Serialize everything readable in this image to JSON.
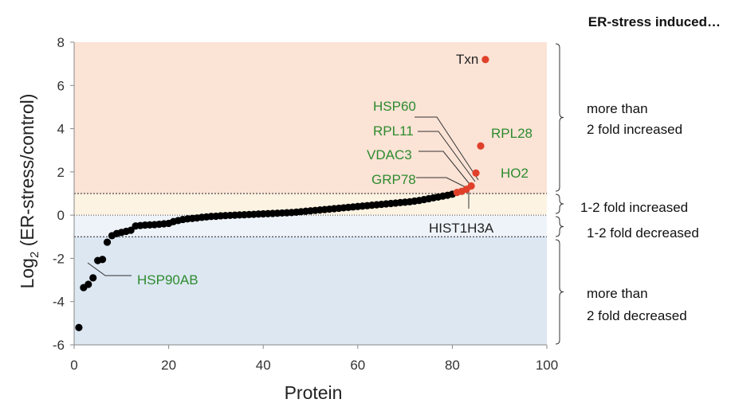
{
  "chart_data": {
    "type": "scatter",
    "title": "",
    "header": "ER-stress induced…",
    "xlabel": "Protein",
    "ylabel_main": "Log",
    "ylabel_sub": "2",
    "ylabel_rest": " (ER-stress/control)",
    "xlim": [
      0,
      100
    ],
    "ylim": [
      -6,
      8
    ],
    "x_ticks": [
      "0",
      "20",
      "40",
      "60",
      "80",
      "100"
    ],
    "y_ticks": [
      "8",
      "6",
      "4",
      "2",
      "0",
      "-2",
      "-4",
      "-6"
    ],
    "colors": {
      "band_increased_2x": "#fbe3d6",
      "band_increased_1_2x": "#fdf3e3",
      "band_decreased_1_2x": "#eef3f9",
      "band_decreased_2x": "#dce7f2",
      "point_default": "#000000",
      "point_highlight": "#e0402a",
      "label_green": "#2e8b2e"
    },
    "bands": [
      {
        "from": 1.0,
        "to": 8.0,
        "label": "more than 2 fold increased"
      },
      {
        "from": 0.0,
        "to": 1.0,
        "label": "1-2 fold increased"
      },
      {
        "from": -1.0,
        "to": 0.0,
        "label": "1-2 fold decreased"
      },
      {
        "from": -6.0,
        "to": -1.0,
        "label": "more than 2 fold decreased"
      }
    ],
    "band_label_lines": {
      "inc2": [
        "more than",
        "2 fold increased"
      ],
      "inc12": "1-2 fold increased",
      "dec12": "1-2 fold decreased",
      "dec2": [
        "more than",
        "2 fold decreased"
      ]
    },
    "series": [
      {
        "color": "#000000",
        "x": [
          1,
          2,
          3,
          4,
          5,
          6,
          7,
          8,
          9,
          10,
          11,
          12,
          13,
          14,
          15,
          16,
          17,
          18,
          19,
          20,
          21,
          22,
          23,
          24,
          25,
          26,
          27,
          28,
          29,
          30,
          31,
          32,
          33,
          34,
          35,
          36,
          37,
          38,
          39,
          40,
          41,
          42,
          43,
          44,
          45,
          46,
          47,
          48,
          49,
          50,
          51,
          52,
          53,
          54,
          55,
          56,
          57,
          58,
          59,
          60,
          61,
          62,
          63,
          64,
          65,
          66,
          67,
          68,
          69,
          70,
          71,
          72,
          73,
          74,
          75,
          76,
          77,
          78,
          79,
          80
        ],
        "y": [
          -5.2,
          -3.35,
          -3.2,
          -2.9,
          -2.1,
          -2.05,
          -1.25,
          -0.95,
          -0.85,
          -0.8,
          -0.75,
          -0.7,
          -0.5,
          -0.48,
          -0.46,
          -0.45,
          -0.44,
          -0.42,
          -0.4,
          -0.38,
          -0.3,
          -0.25,
          -0.2,
          -0.17,
          -0.15,
          -0.13,
          -0.1,
          -0.08,
          -0.06,
          -0.05,
          -0.03,
          -0.02,
          -0.01,
          0.0,
          0.01,
          0.02,
          0.03,
          0.04,
          0.05,
          0.06,
          0.07,
          0.08,
          0.09,
          0.1,
          0.11,
          0.12,
          0.14,
          0.16,
          0.18,
          0.2,
          0.22,
          0.24,
          0.26,
          0.28,
          0.3,
          0.32,
          0.34,
          0.36,
          0.38,
          0.4,
          0.42,
          0.44,
          0.46,
          0.48,
          0.5,
          0.52,
          0.54,
          0.56,
          0.58,
          0.6,
          0.62,
          0.65,
          0.68,
          0.72,
          0.76,
          0.8,
          0.84,
          0.88,
          0.92,
          0.97
        ]
      },
      {
        "color": "#e0402a",
        "x": [
          81,
          82,
          83,
          84,
          85,
          86,
          87
        ],
        "y": [
          1.05,
          1.1,
          1.2,
          1.35,
          1.95,
          3.2,
          7.2
        ]
      }
    ],
    "annotations": [
      {
        "text": "Txn",
        "color": "black"
      },
      {
        "text": "HSP60",
        "color": "green"
      },
      {
        "text": "RPL11",
        "color": "green"
      },
      {
        "text": "VDAC3",
        "color": "green"
      },
      {
        "text": "GRP78",
        "color": "green"
      },
      {
        "text": "RPL28",
        "color": "green"
      },
      {
        "text": "HO2",
        "color": "green"
      },
      {
        "text": "HIST1H3A",
        "color": "black"
      },
      {
        "text": "HSP90AB",
        "color": "green"
      }
    ],
    "grid": false,
    "legend": "none"
  }
}
